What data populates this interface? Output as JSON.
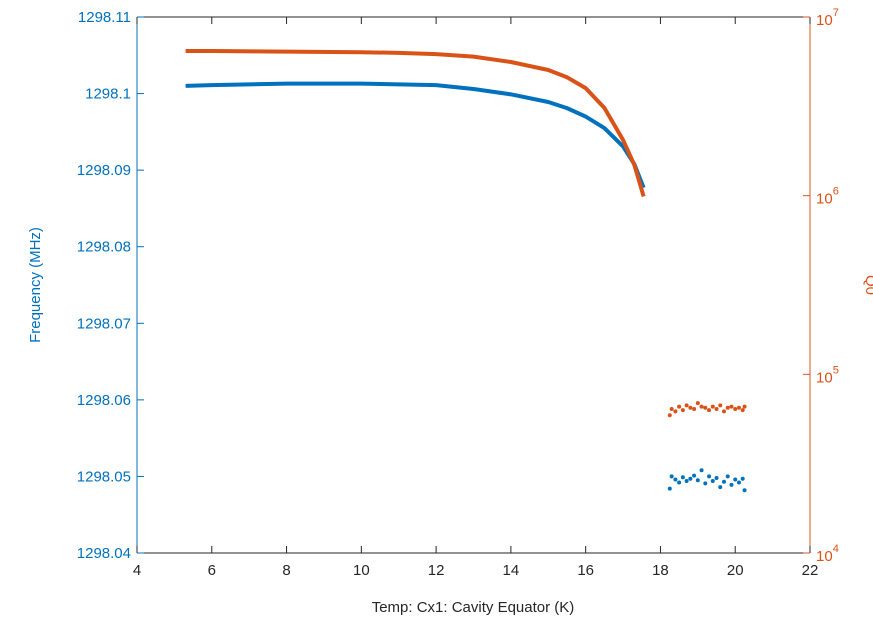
{
  "chart_data": {
    "type": "dual-axis-scatter",
    "xlabel": "Temp: Cx1: Cavity Equator (K)",
    "ylabel": "Frequency (MHz)",
    "y2label": "Q0",
    "xlim": [
      4,
      22
    ],
    "xticks": [
      4,
      6,
      8,
      10,
      12,
      14,
      16,
      18,
      20,
      22
    ],
    "ylim": [
      1298.04,
      1298.11
    ],
    "yticks": [
      1298.04,
      1298.05,
      1298.06,
      1298.07,
      1298.08,
      1298.09,
      1298.1,
      1298.11
    ],
    "y2lim": [
      10000,
      10000000
    ],
    "y2scale": "log",
    "y2ticks": [
      {
        "value": 10000,
        "label": "10",
        "exponent": "4"
      },
      {
        "value": 100000,
        "label": "10",
        "exponent": "5"
      },
      {
        "value": 1000000,
        "label": "10",
        "exponent": "6"
      },
      {
        "value": 10000000,
        "label": "10",
        "exponent": "7"
      }
    ],
    "ycolor": "#0072bd",
    "y2color": "#d95319",
    "series": [
      {
        "color": "#0072bd",
        "axis": "y",
        "style": "line",
        "x": [
          5.3,
          6,
          7,
          8,
          9,
          10,
          11,
          12,
          13,
          14,
          15,
          15.5,
          16,
          16.5,
          17,
          17.3,
          17.55
        ],
        "values": [
          1298.101,
          1298.1011,
          1298.1012,
          1298.1013,
          1298.1013,
          1298.1013,
          1298.1012,
          1298.1011,
          1298.1006,
          1298.0999,
          1298.0989,
          1298.0981,
          1298.097,
          1298.0955,
          1298.0931,
          1298.0908,
          1298.0877
        ]
      },
      {
        "color": "#d95319",
        "axis": "y2",
        "style": "line",
        "x": [
          5.3,
          6,
          8,
          10,
          11,
          12,
          13,
          14,
          15,
          15.5,
          16,
          16.5,
          17,
          17.3,
          17.55
        ],
        "values": [
          6450000,
          6450000,
          6400000,
          6350000,
          6300000,
          6200000,
          6000000,
          5600000,
          5050000,
          4600000,
          4000000,
          3100000,
          2050000,
          1490000,
          990000
        ]
      },
      {
        "color": "#0072bd",
        "axis": "y",
        "style": "points",
        "x": [
          18.25,
          18.3,
          18.4,
          18.5,
          18.6,
          18.7,
          18.8,
          18.9,
          19.0,
          19.1,
          19.2,
          19.3,
          19.4,
          19.5,
          19.6,
          19.7,
          19.8,
          19.9,
          20.0,
          20.1,
          20.2,
          20.25
        ],
        "values": [
          1298.0484,
          1298.05,
          1298.0496,
          1298.0492,
          1298.0499,
          1298.0494,
          1298.0497,
          1298.0501,
          1298.0495,
          1298.0508,
          1298.0491,
          1298.05,
          1298.0494,
          1298.0498,
          1298.0486,
          1298.0493,
          1298.05,
          1298.0489,
          1298.0496,
          1298.0492,
          1298.0497,
          1298.0482
        ]
      },
      {
        "color": "#d95319",
        "axis": "y2",
        "style": "points",
        "x": [
          18.25,
          18.3,
          18.4,
          18.5,
          18.6,
          18.7,
          18.8,
          18.9,
          19.0,
          19.1,
          19.2,
          19.3,
          19.4,
          19.5,
          19.6,
          19.7,
          19.8,
          19.9,
          20.0,
          20.1,
          20.2,
          20.25
        ],
        "values": [
          59000,
          64000,
          62000,
          66000,
          63000,
          67000,
          65000,
          64000,
          69000,
          66000,
          65000,
          63000,
          66000,
          64000,
          67000,
          62000,
          65000,
          66000,
          64000,
          65000,
          63000,
          66000
        ]
      }
    ]
  }
}
